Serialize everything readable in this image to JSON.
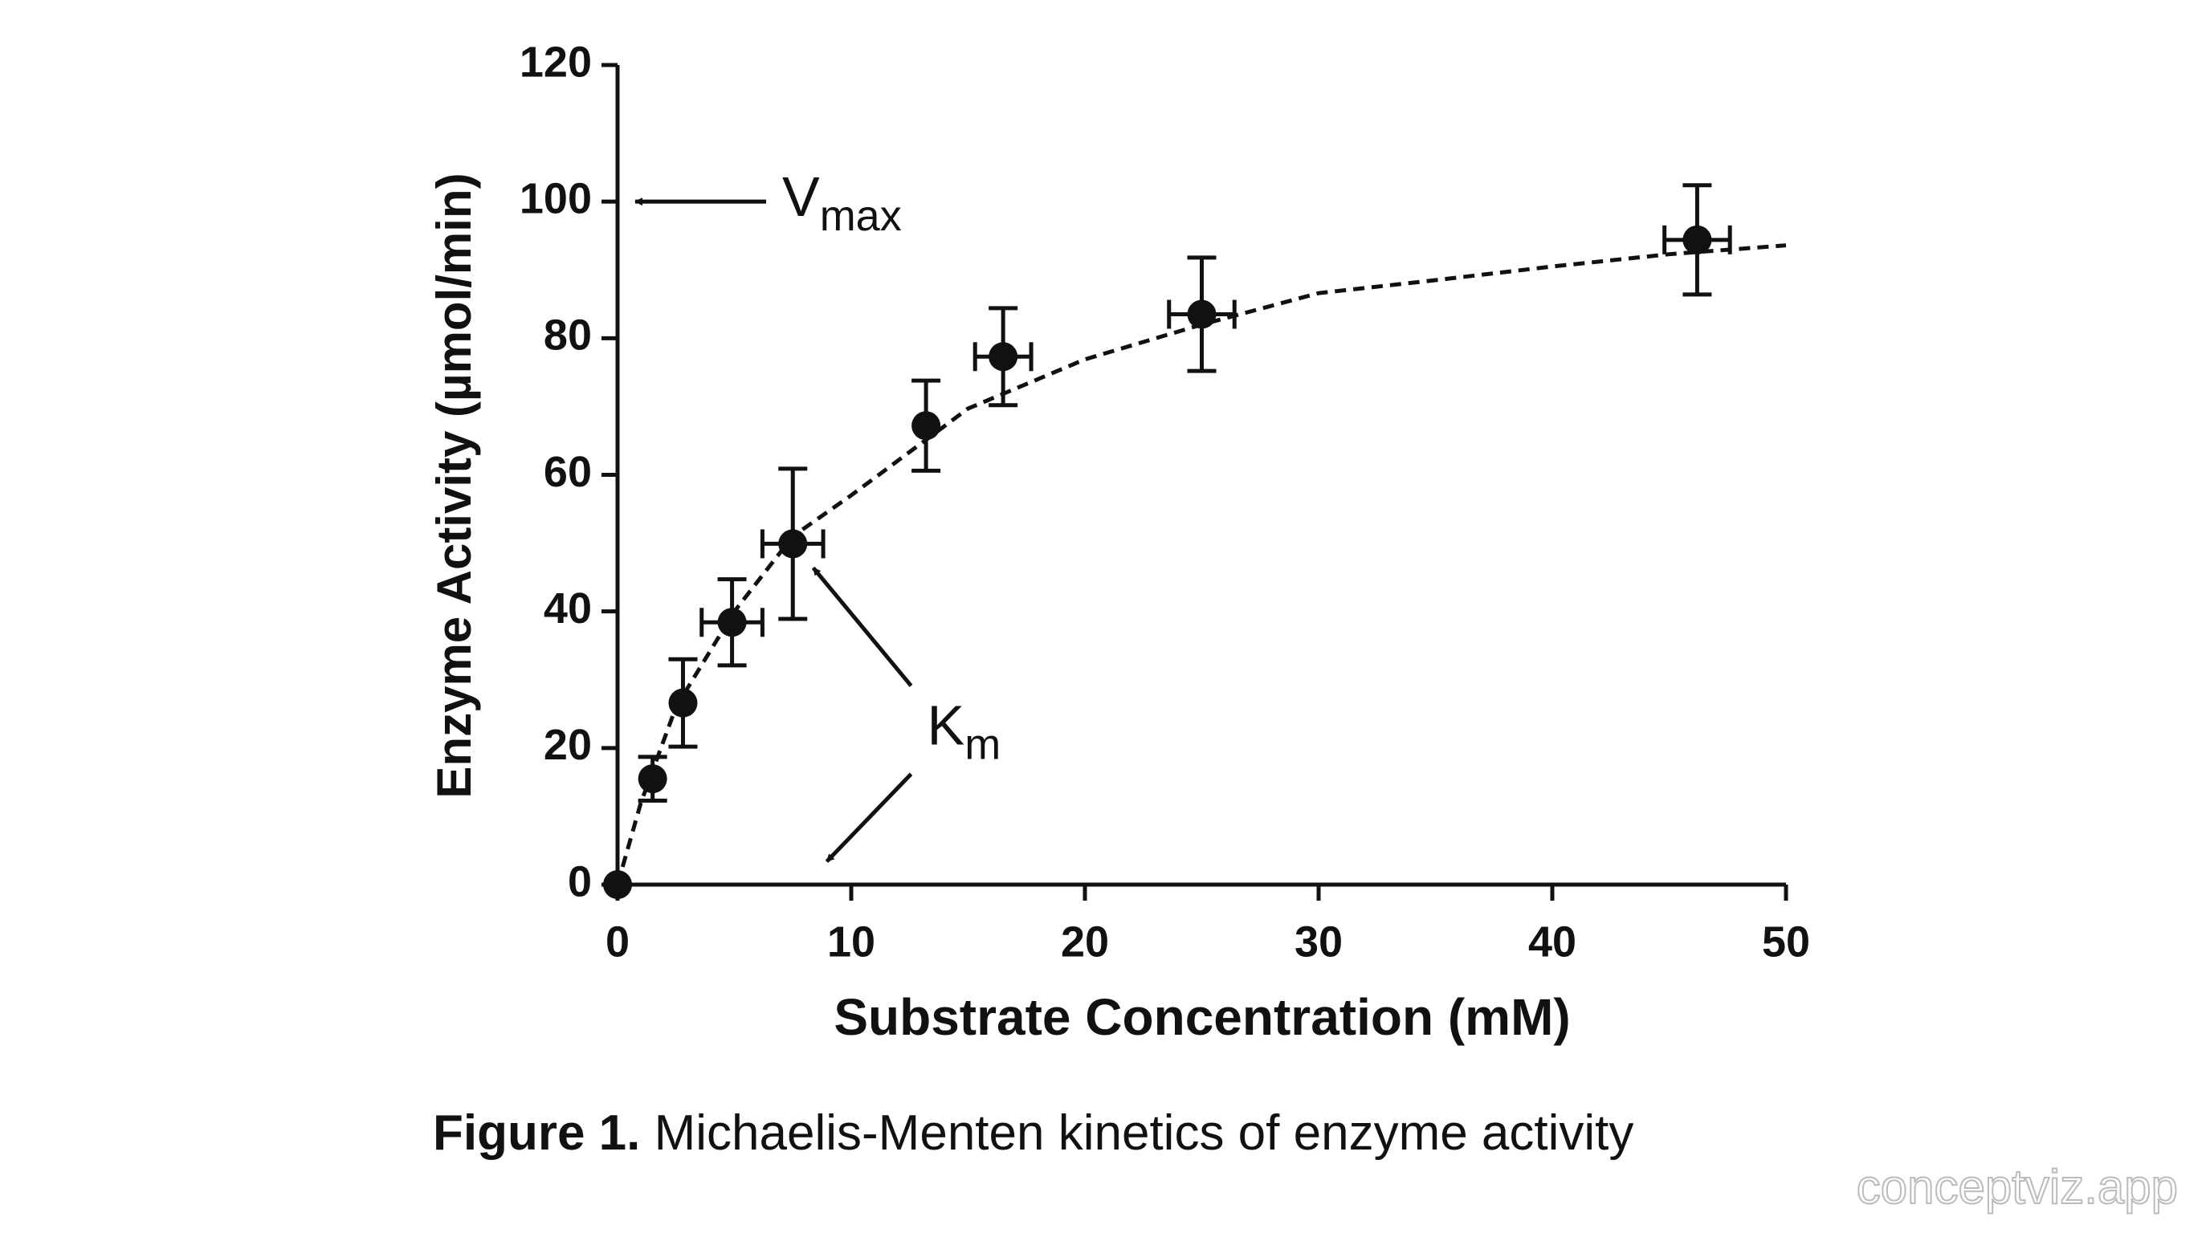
{
  "chart_data": {
    "type": "scatter",
    "xlabel": "Substrate Concentration (mM)",
    "ylabel": "Enzyme Activity (µmol/min)",
    "xlim": [
      0,
      50
    ],
    "xticks": [
      0,
      10,
      20,
      30,
      40,
      50
    ],
    "ylim": [
      0,
      120
    ],
    "yticks": [
      0,
      20,
      40,
      60,
      80,
      100,
      120
    ],
    "series": [
      {
        "color": "#111111",
        "x": [
          0,
          1.5,
          2.8,
          4.9,
          7.5,
          13.2,
          16.5,
          25,
          46.2
        ],
        "values": [
          0,
          15.5,
          26.6,
          38.4,
          49.9,
          67.2,
          77.3,
          83.5,
          94.4
        ],
        "x_err": [
          null,
          null,
          null,
          1.3,
          1.3,
          null,
          1.2,
          1.4,
          1.4
        ],
        "y_err": [
          null,
          3.2,
          6.4,
          6.3,
          11,
          6.6,
          7.1,
          8.3,
          8
        ]
      }
    ],
    "fit": {
      "style": "dashed",
      "x": [
        0,
        1,
        2.5,
        5,
        7.5,
        10,
        15,
        20,
        25,
        30,
        35,
        40,
        45,
        50
      ],
      "values": [
        0,
        12,
        26,
        40,
        51,
        57,
        69.7,
        76.9,
        82,
        86.6,
        88.5,
        90.5,
        92.3,
        93.6
      ]
    },
    "annotations": [
      {
        "text": "V",
        "sub": "max",
        "targets": [
          [
            0,
            100
          ]
        ]
      },
      {
        "text": "K",
        "sub": "m",
        "targets": [
          [
            7.5,
            50
          ],
          [
            8,
            0
          ]
        ]
      }
    ],
    "caption": {
      "label": "Figure 1.",
      "text": "Michaelis-Menten kinetics of enzyme activity"
    }
  },
  "watermark": "conceptviz.app"
}
